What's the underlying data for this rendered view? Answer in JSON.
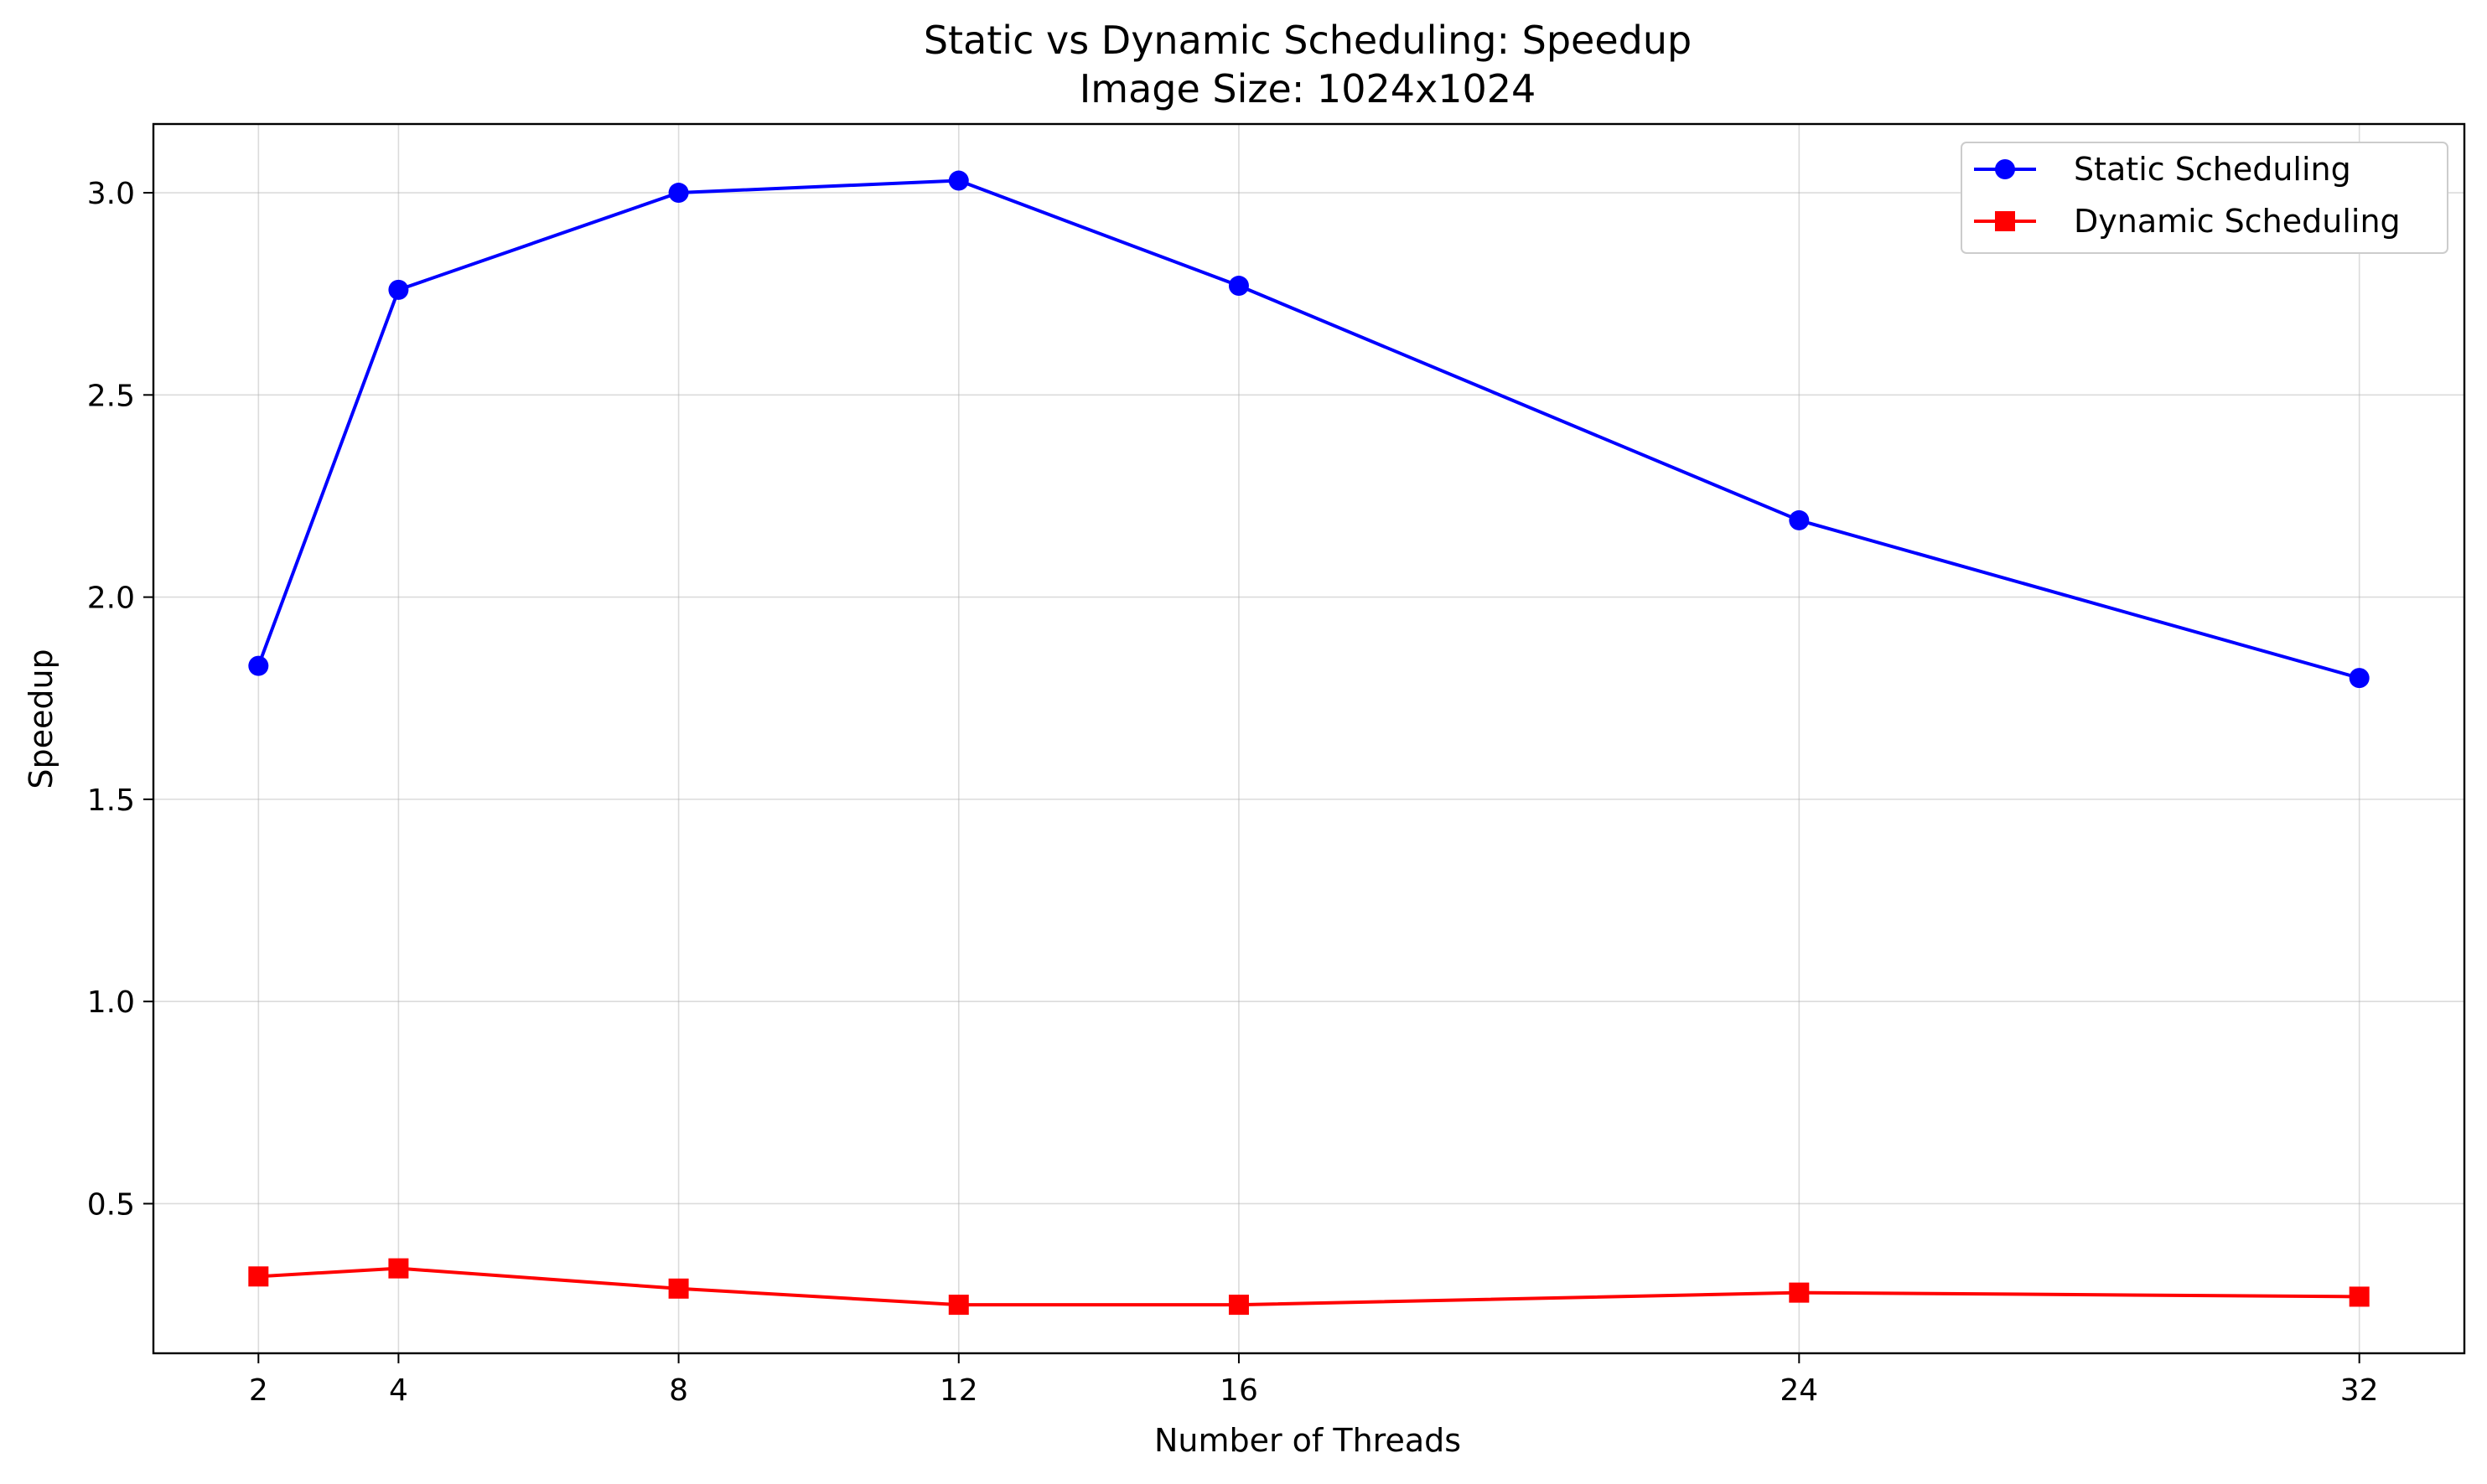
{
  "chart_data": {
    "type": "line",
    "title": "Static vs Dynamic Scheduling: Speedup",
    "subtitle": "Image Size: 1024x1024",
    "xlabel": "Number of Threads",
    "ylabel": "Speedup",
    "x": [
      2,
      4,
      8,
      12,
      16,
      24,
      32
    ],
    "x_ticks": [
      "2",
      "4",
      "8",
      "12",
      "16",
      "24",
      "32"
    ],
    "y_ticks": [
      "0.5",
      "1.0",
      "1.5",
      "2.0",
      "2.5",
      "3.0"
    ],
    "xlim": [
      0.5,
      33.5
    ],
    "ylim": [
      0.13,
      3.17
    ],
    "grid": true,
    "legend_position": "top-right",
    "series": [
      {
        "name": "Static Scheduling",
        "color": "#0000ff",
        "marker": "circle",
        "values": [
          1.83,
          2.76,
          3.0,
          3.03,
          2.77,
          2.19,
          1.8
        ]
      },
      {
        "name": "Dynamic Scheduling",
        "color": "#ff0000",
        "marker": "square",
        "values": [
          0.32,
          0.34,
          0.29,
          0.25,
          0.25,
          0.28,
          0.27
        ]
      }
    ]
  }
}
